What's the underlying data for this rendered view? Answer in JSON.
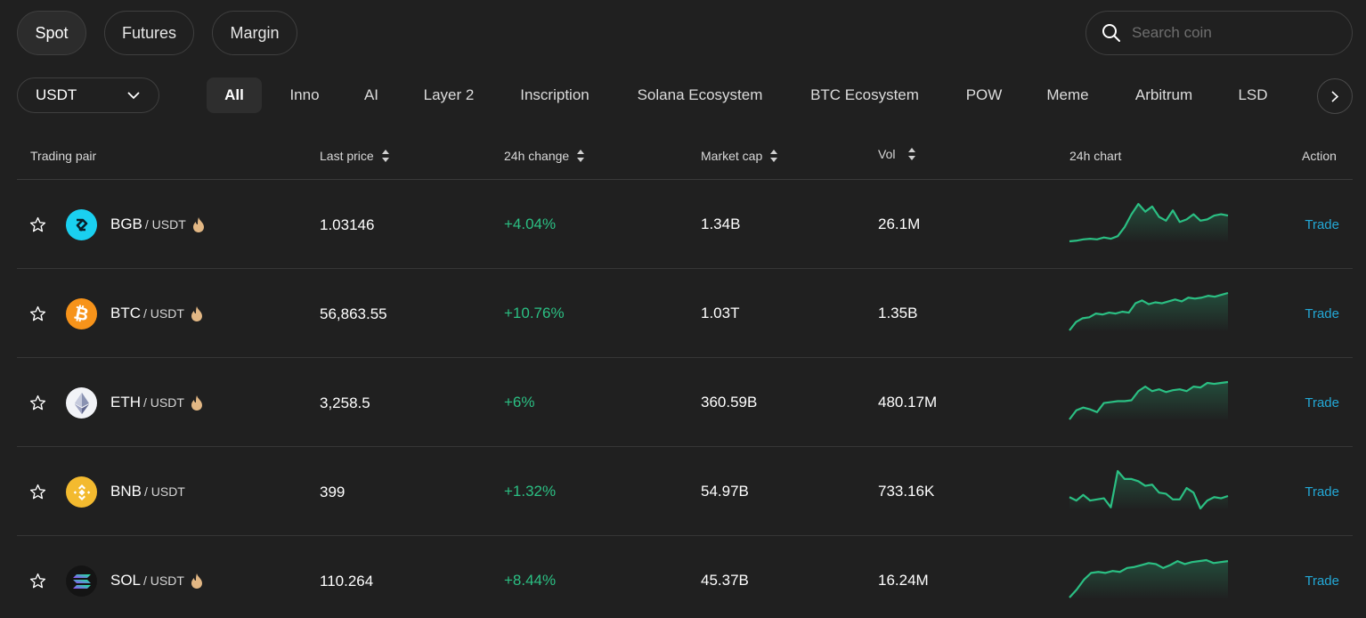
{
  "market_tabs": [
    "Spot",
    "Futures",
    "Margin"
  ],
  "search": {
    "placeholder": "Search coin"
  },
  "quote_select": {
    "value": "USDT"
  },
  "categories": [
    "All",
    "Inno",
    "AI",
    "Layer 2",
    "Inscription",
    "Solana Ecosystem",
    "BTC Ecosystem",
    "POW",
    "Meme",
    "Arbitrum",
    "LSD"
  ],
  "columns": {
    "pair": "Trading pair",
    "price": "Last price",
    "change": "24h change",
    "mcap": "Market cap",
    "vol": "Vol",
    "chart": "24h chart",
    "action": "Action"
  },
  "colors": {
    "accent_up": "#2bbf83",
    "link": "#23a8d6",
    "background": "#202020"
  },
  "rows": [
    {
      "base": "BGB",
      "quote": "/ USDT",
      "hot": true,
      "icon": "bgb-logo-icon",
      "price": "1.03146",
      "change": "+4.04%",
      "mcap": "1.34B",
      "vol": "26.1M",
      "action": "Trade",
      "trend": [
        1,
        1.5,
        2.5,
        3,
        2.5,
        4,
        3,
        5,
        12,
        22,
        30,
        24,
        28,
        20,
        17,
        25,
        16,
        18,
        22,
        17,
        18,
        21,
        22,
        21
      ]
    },
    {
      "base": "BTC",
      "quote": "/ USDT",
      "hot": true,
      "icon": "btc-logo-icon",
      "price": "56,863.55",
      "change": "+10.76%",
      "mcap": "1.03T",
      "vol": "1.35B",
      "action": "Trade",
      "trend": [
        0,
        9,
        13,
        14,
        18,
        17,
        19,
        18,
        20,
        19,
        29,
        32,
        28,
        30,
        29,
        31,
        33,
        31,
        35,
        34,
        35,
        37,
        36,
        38,
        40
      ]
    },
    {
      "base": "ETH",
      "quote": "/ USDT",
      "hot": true,
      "icon": "eth-logo-icon",
      "price": "3,258.5",
      "change": "+6%",
      "mcap": "360.59B",
      "vol": "480.17M",
      "action": "Trade",
      "trend": [
        2,
        12,
        15,
        13,
        10,
        20,
        21,
        22,
        22,
        23,
        33,
        38,
        33,
        35,
        32,
        34,
        35,
        33,
        38,
        37,
        42,
        41,
        42,
        43
      ]
    },
    {
      "base": "BNB",
      "quote": "/ USDT",
      "hot": false,
      "icon": "bnb-logo-icon",
      "price": "399",
      "change": "+1.32%",
      "mcap": "54.97B",
      "vol": "733.16K",
      "action": "Trade",
      "trend": [
        14,
        11,
        16,
        11,
        12,
        13,
        5,
        37,
        30,
        30,
        28,
        24,
        25,
        18,
        17,
        12,
        12,
        22,
        18,
        4,
        11,
        14,
        13,
        15
      ]
    },
    {
      "base": "SOL",
      "quote": "/ USDT",
      "hot": true,
      "icon": "sol-logo-icon",
      "price": "110.264",
      "change": "+8.44%",
      "mcap": "45.37B",
      "vol": "16.24M",
      "action": "Trade",
      "trend": [
        0,
        8,
        18,
        25,
        26,
        25,
        27,
        26,
        30,
        31,
        33,
        35,
        34,
        30,
        33,
        37,
        34,
        36,
        37,
        38,
        35,
        36,
        37
      ]
    }
  ]
}
